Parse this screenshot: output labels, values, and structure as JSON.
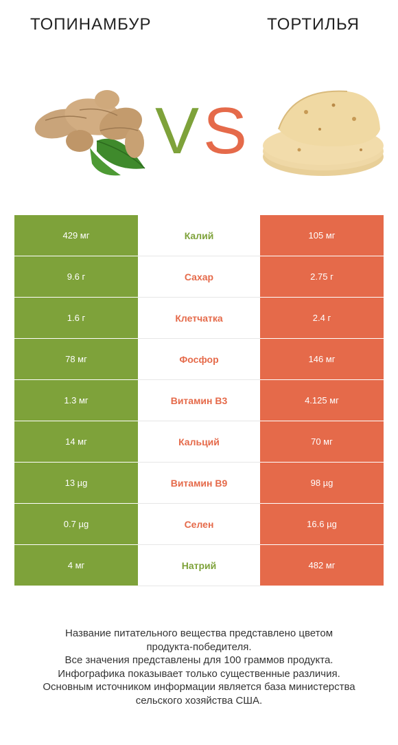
{
  "header": {
    "left_title": "ТОПИНАМБУР",
    "right_title": "ТОРТИЛЬЯ",
    "vs_v": "V",
    "vs_s": "S"
  },
  "colors": {
    "left_product": "#7ea23a",
    "right_product": "#e56a4a"
  },
  "rows": [
    {
      "name": "Калий",
      "left": "429 мг",
      "right": "105 мг",
      "winner": "left"
    },
    {
      "name": "Сахар",
      "left": "9.6 г",
      "right": "2.75 г",
      "winner": "right"
    },
    {
      "name": "Клетчатка",
      "left": "1.6 г",
      "right": "2.4 г",
      "winner": "right"
    },
    {
      "name": "Фосфор",
      "left": "78 мг",
      "right": "146 мг",
      "winner": "right"
    },
    {
      "name": "Витамин B3",
      "left": "1.3 мг",
      "right": "4.125 мг",
      "winner": "right"
    },
    {
      "name": "Кальций",
      "left": "14 мг",
      "right": "70 мг",
      "winner": "right"
    },
    {
      "name": "Витамин B9",
      "left": "13 µg",
      "right": "98 µg",
      "winner": "right"
    },
    {
      "name": "Селен",
      "left": "0.7 µg",
      "right": "16.6 µg",
      "winner": "right"
    },
    {
      "name": "Натрий",
      "left": "4 мг",
      "right": "482 мг",
      "winner": "left"
    }
  ],
  "footer": {
    "lines": [
      "Название питательного вещества представлено цветом",
      "продукта-победителя.",
      "Все значения представлены для 100 граммов продукта.",
      "Инфографика показывает только существенные различия.",
      "Основным источником информации является база министерства",
      "сельского хозяйства США."
    ]
  }
}
